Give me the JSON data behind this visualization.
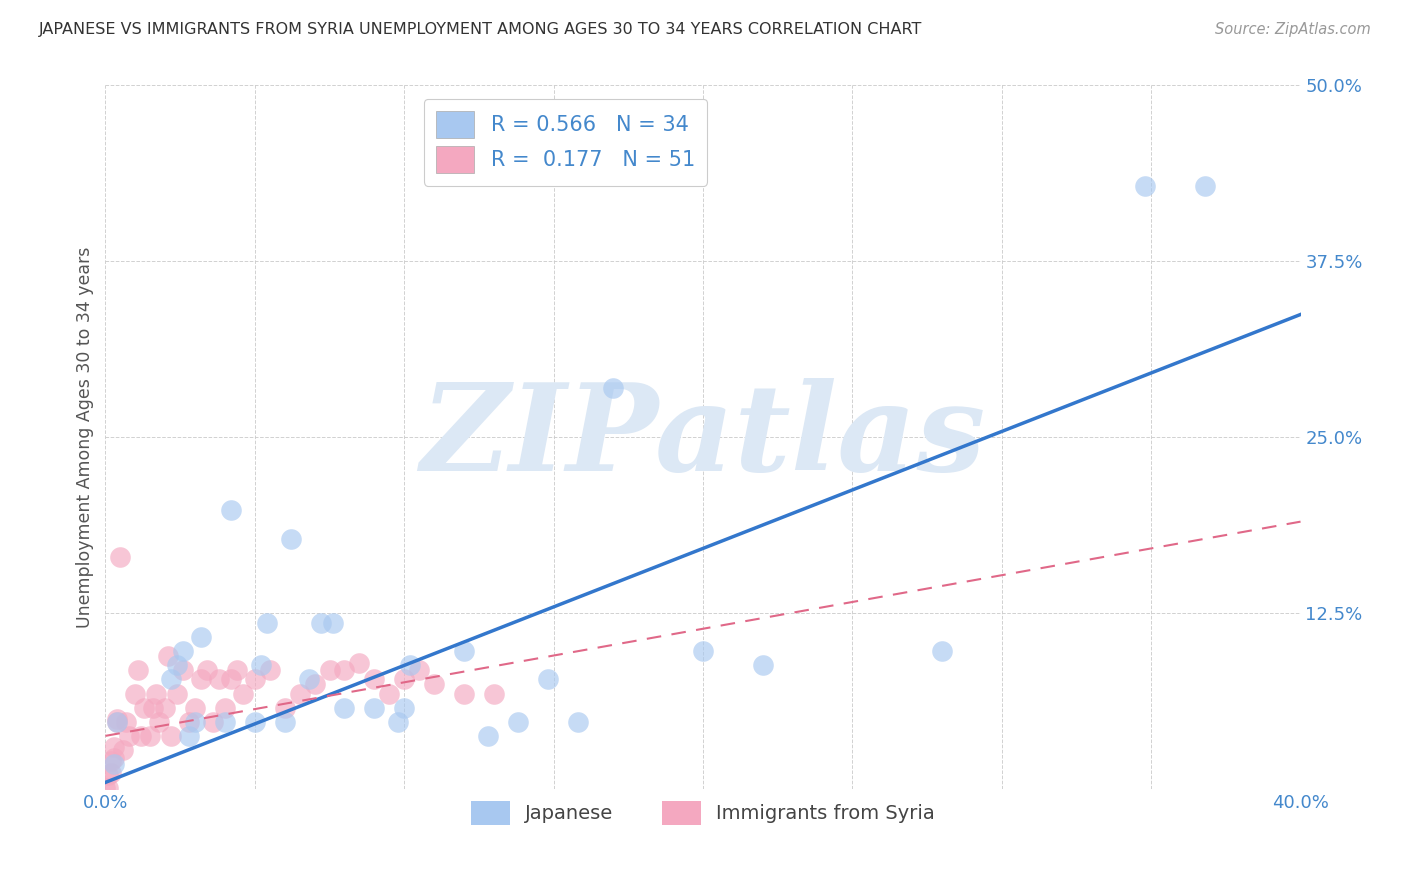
{
  "title": "JAPANESE VS IMMIGRANTS FROM SYRIA UNEMPLOYMENT AMONG AGES 30 TO 34 YEARS CORRELATION CHART",
  "source": "Source: ZipAtlas.com",
  "ylabel": "Unemployment Among Ages 30 to 34 years",
  "xlim": [
    0.0,
    0.4
  ],
  "ylim": [
    0.0,
    0.5
  ],
  "xtick_positions": [
    0.0,
    0.05,
    0.1,
    0.15,
    0.2,
    0.25,
    0.3,
    0.35,
    0.4
  ],
  "ytick_positions": [
    0.0,
    0.125,
    0.25,
    0.375,
    0.5
  ],
  "xticklabels_show": [
    "0.0%",
    "40.0%"
  ],
  "xticklabels_pos": [
    0.0,
    0.4
  ],
  "yticklabels": [
    "",
    "12.5%",
    "25.0%",
    "37.5%",
    "50.0%"
  ],
  "japanese_R": 0.566,
  "japanese_N": 34,
  "syria_R": 0.177,
  "syria_N": 51,
  "japanese_color": "#a8c8f0",
  "syria_color": "#f4a8c0",
  "japanese_line_color": "#3377cc",
  "syria_line_color": "#e06888",
  "tick_color": "#4488cc",
  "watermark_text": "ZIPatlas",
  "watermark_color": "#dce8f5",
  "japanese_x": [
    0.003,
    0.004,
    0.022,
    0.024,
    0.026,
    0.028,
    0.03,
    0.032,
    0.04,
    0.042,
    0.05,
    0.052,
    0.054,
    0.06,
    0.062,
    0.068,
    0.072,
    0.076,
    0.08,
    0.09,
    0.098,
    0.1,
    0.102,
    0.12,
    0.128,
    0.138,
    0.148,
    0.158,
    0.17,
    0.2,
    0.22,
    0.28,
    0.348,
    0.368
  ],
  "japanese_y": [
    0.018,
    0.048,
    0.078,
    0.088,
    0.098,
    0.038,
    0.048,
    0.108,
    0.048,
    0.198,
    0.048,
    0.088,
    0.118,
    0.048,
    0.178,
    0.078,
    0.118,
    0.118,
    0.058,
    0.058,
    0.048,
    0.058,
    0.088,
    0.098,
    0.038,
    0.048,
    0.078,
    0.048,
    0.285,
    0.098,
    0.088,
    0.098,
    0.428,
    0.428
  ],
  "syria_x": [
    0.0,
    0.001,
    0.001,
    0.002,
    0.002,
    0.003,
    0.003,
    0.004,
    0.004,
    0.005,
    0.006,
    0.007,
    0.008,
    0.01,
    0.011,
    0.012,
    0.013,
    0.015,
    0.016,
    0.017,
    0.018,
    0.02,
    0.021,
    0.022,
    0.024,
    0.026,
    0.028,
    0.03,
    0.032,
    0.034,
    0.036,
    0.038,
    0.04,
    0.042,
    0.044,
    0.046,
    0.05,
    0.055,
    0.06,
    0.065,
    0.07,
    0.075,
    0.08,
    0.085,
    0.09,
    0.095,
    0.1,
    0.105,
    0.11,
    0.12,
    0.13
  ],
  "syria_y": [
    0.001,
    0.001,
    0.01,
    0.012,
    0.02,
    0.022,
    0.03,
    0.048,
    0.05,
    0.165,
    0.028,
    0.048,
    0.038,
    0.068,
    0.085,
    0.038,
    0.058,
    0.038,
    0.058,
    0.068,
    0.048,
    0.058,
    0.095,
    0.038,
    0.068,
    0.085,
    0.048,
    0.058,
    0.078,
    0.085,
    0.048,
    0.078,
    0.058,
    0.078,
    0.085,
    0.068,
    0.078,
    0.085,
    0.058,
    0.068,
    0.075,
    0.085,
    0.085,
    0.09,
    0.078,
    0.068,
    0.078,
    0.085,
    0.075,
    0.068,
    0.068
  ]
}
